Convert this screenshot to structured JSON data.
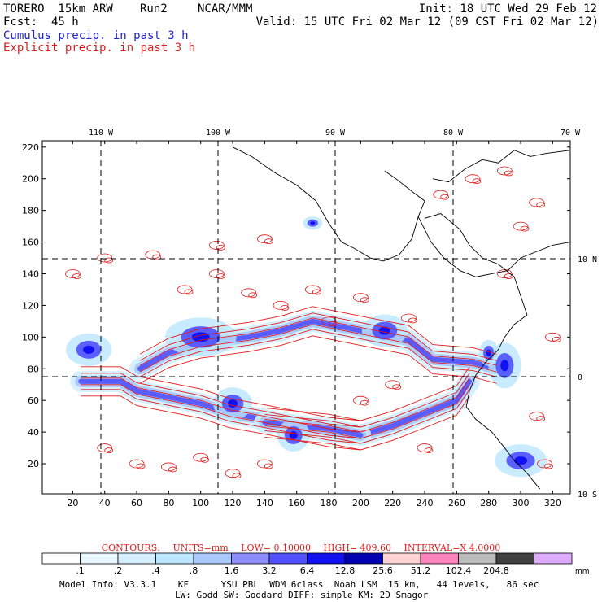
{
  "header": {
    "model": "TORERO  15km ARW",
    "run": "Run2",
    "org": "NCAR/MMM",
    "init": "Init: 18 UTC Wed 29 Feb 12",
    "fcst_label": "Fcst:",
    "fcst_value": "45 h",
    "valid": "Valid: 15 UTC Fri 02 Mar 12 (09 CST Fri 02 Mar 12)",
    "cumulus": "Cumulus precip. in past 3 h",
    "explicit": "Explicit precip. in past 3 h"
  },
  "chart_data": {
    "type": "heatmap",
    "title": "",
    "x_ticks": [
      20,
      40,
      60,
      80,
      100,
      120,
      140,
      160,
      180,
      200,
      220,
      240,
      260,
      280,
      300,
      320
    ],
    "y_ticks": [
      20,
      40,
      60,
      80,
      100,
      120,
      140,
      160,
      180,
      200,
      220
    ],
    "xlim": [
      1,
      331
    ],
    "ylim": [
      1,
      224
    ],
    "lon_labels": [
      "110 W",
      "100 W",
      "90 W",
      "80 W",
      "70 W"
    ],
    "lat_labels": [
      "10 N",
      "0",
      "10 S"
    ],
    "grid": true,
    "colorbar": {
      "levels": [
        ".1",
        ".2",
        ".4",
        ".8",
        "1.6",
        "3.2",
        "6.4",
        "12.8",
        "25.6",
        "51.2",
        "102.4",
        "204.8"
      ],
      "colors": [
        "#ffffff",
        "#e8f6ff",
        "#d2eeff",
        "#bbe6ff",
        "#a9c8ff",
        "#8c8cff",
        "#5050ff",
        "#1010f0",
        "#0000b0",
        "#ffd2d2",
        "#ff82bc",
        "#bababa",
        "#404040",
        "#dcaaff"
      ],
      "unit": "mm"
    },
    "contours": {
      "label": "CONTOURS:",
      "units": "UNITS=mm",
      "low": "LOW= 0.10000",
      "high": "HIGH=  409.60",
      "interval": "INTERVAL=X  4.0000"
    }
  },
  "footer": {
    "line1": "Model Info: V3.3.1    KF      YSU PBL  WDM 6class  Noah LSM  15 km,   44 levels,   86 sec",
    "line2": "LW: Godd SW: Goddard DIFF: simple KM: 2D Smagor"
  },
  "colors": {
    "contour": "#e01a1a",
    "cumulus": "#2020c8",
    "coast": "#000000"
  }
}
